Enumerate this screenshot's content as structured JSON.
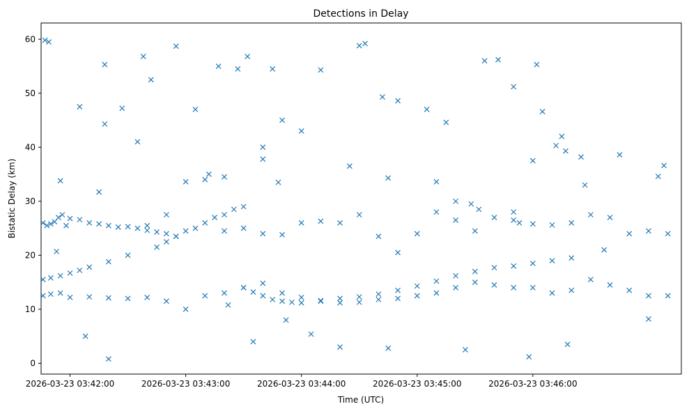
{
  "chart_data": {
    "type": "scatter",
    "title": "Detections in Delay",
    "xlabel": "Time (UTC)",
    "ylabel": "Bistatic Delay (km)",
    "x_ticks": [
      "2026-03-23 03:42:00",
      "2026-03-23 03:43:00",
      "2026-03-23 03:44:00",
      "2026-03-23 03:45:00",
      "2026-03-23 03:46:00"
    ],
    "y_ticks": [
      0,
      10,
      20,
      30,
      40,
      50,
      60
    ],
    "xlim": [
      "2026-03-23 03:41:45",
      "2026-03-23 03:47:17"
    ],
    "ylim": [
      -2,
      63
    ],
    "grid": false,
    "marker": "x",
    "color": "#1f77b4",
    "series": [
      {
        "x": [
          "2026-03-23 03:41:46",
          "2026-03-23 03:41:48",
          "2026-03-23 03:41:50",
          "2026-03-23 03:41:52",
          "2026-03-23 03:41:54",
          "2026-03-23 03:41:56",
          "2026-03-23 03:41:58",
          "2026-03-23 03:42:00",
          "2026-03-23 03:42:05",
          "2026-03-23 03:42:10",
          "2026-03-23 03:42:15",
          "2026-03-23 03:42:20",
          "2026-03-23 03:42:25",
          "2026-03-23 03:42:30",
          "2026-03-23 03:42:35",
          "2026-03-23 03:42:40",
          "2026-03-23 03:42:45",
          "2026-03-23 03:42:50",
          "2026-03-23 03:42:55",
          "2026-03-23 03:41:46",
          "2026-03-23 03:41:50",
          "2026-03-23 03:41:55",
          "2026-03-23 03:42:00",
          "2026-03-23 03:42:05",
          "2026-03-23 03:42:10",
          "2026-03-23 03:42:20",
          "2026-03-23 03:42:30",
          "2026-03-23 03:42:40",
          "2026-03-23 03:42:50",
          "2026-03-23 03:43:00",
          "2026-03-23 03:43:10",
          "2026-03-23 03:43:20",
          "2026-03-23 03:43:30",
          "2026-03-23 03:43:40",
          "2026-03-23 03:43:50",
          "2026-03-23 03:44:00",
          "2026-03-23 03:44:10",
          "2026-03-23 03:44:20",
          "2026-03-23 03:44:30",
          "2026-03-23 03:44:40",
          "2026-03-23 03:44:50",
          "2026-03-23 03:45:00",
          "2026-03-23 03:45:10",
          "2026-03-23 03:45:20",
          "2026-03-23 03:45:30",
          "2026-03-23 03:45:40",
          "2026-03-23 03:45:50",
          "2026-03-23 03:46:00",
          "2026-03-23 03:46:10",
          "2026-03-23 03:46:20",
          "2026-03-23 03:46:30",
          "2026-03-23 03:46:40",
          "2026-03-23 03:46:50",
          "2026-03-23 03:47:00",
          "2026-03-23 03:47:10",
          "2026-03-23 03:41:46",
          "2026-03-23 03:41:50",
          "2026-03-23 03:41:55",
          "2026-03-23 03:42:00",
          "2026-03-23 03:42:10",
          "2026-03-23 03:42:20",
          "2026-03-23 03:42:30",
          "2026-03-23 03:42:40",
          "2026-03-23 03:42:50",
          "2026-03-23 03:43:00",
          "2026-03-23 03:43:10",
          "2026-03-23 03:43:20",
          "2026-03-23 03:43:30",
          "2026-03-23 03:43:40",
          "2026-03-23 03:43:50",
          "2026-03-23 03:44:00",
          "2026-03-23 03:44:10",
          "2026-03-23 03:44:20",
          "2026-03-23 03:44:30",
          "2026-03-23 03:44:40",
          "2026-03-23 03:44:50",
          "2026-03-23 03:45:00",
          "2026-03-23 03:45:10",
          "2026-03-23 03:45:20",
          "2026-03-23 03:45:30",
          "2026-03-23 03:45:40",
          "2026-03-23 03:45:50",
          "2026-03-23 03:46:00",
          "2026-03-23 03:46:10",
          "2026-03-23 03:46:20",
          "2026-03-23 03:46:30",
          "2026-03-23 03:46:40",
          "2026-03-23 03:46:50",
          "2026-03-23 03:47:00",
          "2026-03-23 03:47:10",
          "2026-03-23 03:42:45",
          "2026-03-23 03:42:50",
          "2026-03-23 03:42:55",
          "2026-03-23 03:43:00",
          "2026-03-23 03:43:05",
          "2026-03-23 03:43:10",
          "2026-03-23 03:43:15",
          "2026-03-23 03:43:20",
          "2026-03-23 03:43:25",
          "2026-03-23 03:43:30",
          "2026-03-23 03:43:30",
          "2026-03-23 03:43:35",
          "2026-03-23 03:43:40",
          "2026-03-23 03:43:45",
          "2026-03-23 03:43:50",
          "2026-03-23 03:43:55",
          "2026-03-23 03:44:00",
          "2026-03-23 03:44:10",
          "2026-03-23 03:44:20",
          "2026-03-23 03:44:30",
          "2026-03-23 03:44:40",
          "2026-03-23 03:44:50",
          "2026-03-23 03:45:00",
          "2026-03-23 03:45:10",
          "2026-03-23 03:45:20",
          "2026-03-23 03:45:30",
          "2026-03-23 03:45:40",
          "2026-03-23 03:45:50",
          "2026-03-23 03:46:00",
          "2026-03-23 03:46:10",
          "2026-03-23 03:46:20",
          "2026-03-23 03:41:47",
          "2026-03-23 03:41:49",
          "2026-03-23 03:42:05",
          "2026-03-23 03:42:15",
          "2026-03-23 03:42:18",
          "2026-03-23 03:42:20",
          "2026-03-23 03:42:27",
          "2026-03-23 03:42:38",
          "2026-03-23 03:42:42",
          "2026-03-23 03:42:55",
          "2026-03-23 03:43:05",
          "2026-03-23 03:43:17",
          "2026-03-23 03:43:27",
          "2026-03-23 03:43:32",
          "2026-03-23 03:43:40",
          "2026-03-23 03:43:45",
          "2026-03-23 03:43:50",
          "2026-03-23 03:44:00",
          "2026-03-23 03:44:10",
          "2026-03-23 03:44:30",
          "2026-03-23 03:44:33",
          "2026-03-23 03:44:42",
          "2026-03-23 03:44:50",
          "2026-03-23 03:45:05",
          "2026-03-23 03:45:15",
          "2026-03-23 03:45:35",
          "2026-03-23 03:45:42",
          "2026-03-23 03:45:50",
          "2026-03-23 03:46:00",
          "2026-03-23 03:46:02",
          "2026-03-23 03:46:05",
          "2026-03-23 03:46:12",
          "2026-03-23 03:46:15",
          "2026-03-23 03:46:17",
          "2026-03-23 03:46:25",
          "2026-03-23 03:46:27",
          "2026-03-23 03:46:45",
          "2026-03-23 03:47:05",
          "2026-03-23 03:47:08",
          "2026-03-23 03:42:08",
          "2026-03-23 03:43:35",
          "2026-03-23 03:44:20",
          "2026-03-23 03:44:45",
          "2026-03-23 03:45:25",
          "2026-03-23 03:45:58",
          "2026-03-23 03:46:18",
          "2026-03-23 03:47:00",
          "2026-03-23 03:41:55",
          "2026-03-23 03:42:18",
          "2026-03-23 03:42:35",
          "2026-03-23 03:43:12",
          "2026-03-23 03:43:20",
          "2026-03-23 03:43:40",
          "2026-03-23 03:43:48",
          "2026-03-23 03:44:25",
          "2026-03-23 03:44:45",
          "2026-03-23 03:45:10",
          "2026-03-23 03:45:20",
          "2026-03-23 03:45:28",
          "2026-03-23 03:45:32",
          "2026-03-23 03:45:50",
          "2026-03-23 03:45:53",
          "2026-03-23 03:43:22",
          "2026-03-23 03:43:52",
          "2026-03-23 03:44:05",
          "2026-03-23 03:41:53",
          "2026-03-23 03:46:37"
        ],
        "y": [
          26,
          25.5,
          25.8,
          26.2,
          27,
          27.5,
          25.5,
          26.8,
          26.6,
          26,
          25.8,
          25.5,
          25.2,
          25.3,
          25,
          24.6,
          24.3,
          24,
          23.5,
          15.5,
          15.8,
          16.2,
          16.7,
          17.2,
          17.8,
          18.8,
          20,
          25.5,
          27.5,
          33.6,
          34,
          24.5,
          25,
          24,
          23.8,
          26,
          26.3,
          26,
          27.5,
          23.5,
          20.5,
          24,
          28,
          26.5,
          24.5,
          27,
          28,
          25.8,
          25.6,
          26,
          27.5,
          27,
          24,
          24.5,
          24,
          12.5,
          12.8,
          13,
          12.2,
          12.3,
          12.1,
          12,
          12.2,
          11.5,
          10,
          12.5,
          13,
          14,
          14.8,
          13,
          12.2,
          11.5,
          11.2,
          11.3,
          11.8,
          12,
          12.5,
          13,
          14,
          15,
          14.5,
          14,
          14,
          13,
          13.5,
          15.5,
          14.5,
          13.5,
          12.5,
          12.5,
          21.5,
          22.5,
          23.5,
          24.5,
          25,
          26,
          27,
          27.5,
          28.5,
          29,
          14,
          13.2,
          12.5,
          11.8,
          11.5,
          11.3,
          11.2,
          11.6,
          12,
          12.3,
          12.8,
          13.5,
          14.3,
          15.2,
          16.2,
          17,
          17.7,
          18,
          18.5,
          19,
          19.5,
          59.8,
          59.5,
          47.5,
          31.7,
          55.3,
          0.8,
          47.2,
          56.8,
          52.5,
          58.7,
          47,
          55,
          54.5,
          56.8,
          40,
          54.5,
          45,
          43,
          54.3,
          58.8,
          59.2,
          49.3,
          48.6,
          47,
          44.6,
          56,
          56.2,
          51.2,
          37.5,
          55.3,
          46.6,
          40.3,
          42,
          39.3,
          38.2,
          33,
          38.6,
          34.6,
          36.6,
          5,
          4,
          3,
          2.8,
          2.5,
          1.2,
          3.5,
          8.2,
          33.8,
          44.3,
          41,
          35,
          34.5,
          37.8,
          33.5,
          36.5,
          34.3,
          33.6,
          30,
          29.5,
          28.5,
          26.5,
          26,
          10.8,
          8,
          5.4,
          20.7,
          21
        ]
      }
    ]
  }
}
